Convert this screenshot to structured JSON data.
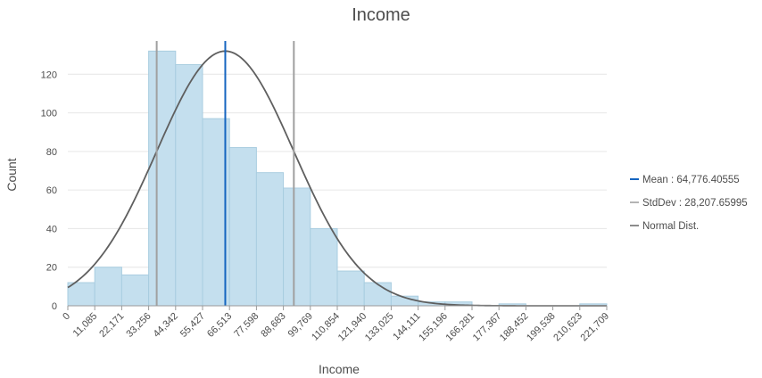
{
  "chart_data": {
    "type": "bar",
    "subtype": "histogram",
    "title": "Income",
    "xlabel": "Income",
    "ylabel": "Count",
    "xlim": [
      0,
      221709
    ],
    "ylim": [
      0,
      140
    ],
    "y_ticks": [
      0,
      20,
      40,
      60,
      80,
      100,
      120
    ],
    "grid": true,
    "legend_position": "right",
    "bin_edges": [
      0,
      11085,
      22171,
      33256,
      44342,
      55427,
      66513,
      77598,
      88683,
      99769,
      110854,
      121940,
      133025,
      144111,
      155196,
      166281,
      177367,
      188452,
      199538,
      210623,
      221709
    ],
    "x_tick_labels": [
      "0",
      "11,085",
      "22,171",
      "33,256",
      "44,342",
      "55,427",
      "66,513",
      "77,598",
      "88,683",
      "99,769",
      "110,854",
      "121,940",
      "133,025",
      "144,111",
      "155,196",
      "166,281",
      "177,367",
      "188,452",
      "199,538",
      "210,623",
      "221,709"
    ],
    "values": [
      12,
      20,
      16,
      132,
      125,
      97,
      82,
      69,
      61,
      40,
      18,
      12,
      5,
      2,
      2,
      0,
      1,
      0,
      0,
      1
    ],
    "mean": 64776.40555,
    "stddev": 28207.65995,
    "normal_peak": 132,
    "legend": [
      {
        "label": "Mean : 64,776.40555",
        "color": "#1565c0"
      },
      {
        "label": "StdDev : 28,207.65995",
        "color": "#b4b4b4"
      },
      {
        "label": "Normal Dist.",
        "color": "#8c8c8c"
      }
    ],
    "colors": {
      "bar_fill": "#c4dfee",
      "bar_stroke": "#a9cde0",
      "mean_line": "#1565c0",
      "stddev_line": "#a0a0a0",
      "normal_curve": "#5f5f5f",
      "grid": "#e6e6e6",
      "axis": "#9a9a9a"
    }
  }
}
